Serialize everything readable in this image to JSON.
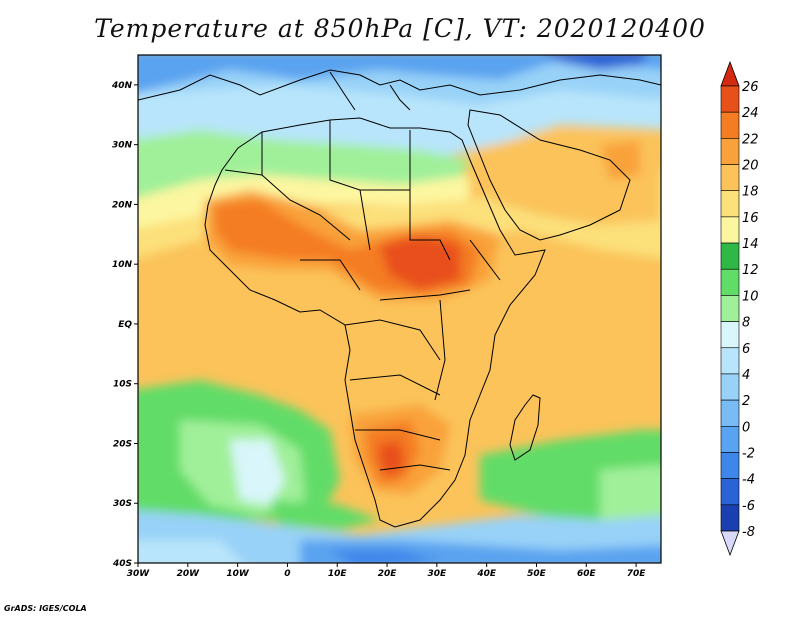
{
  "title": "Temperature at 850hPa [C], VT: 2020120400",
  "credit": "GrADS: IGES/COLA",
  "map": {
    "lon_range": [
      -30,
      75
    ],
    "lat_range": [
      -40,
      45
    ],
    "lat_ticks": [
      {
        "value": 40,
        "label": "40N"
      },
      {
        "value": 30,
        "label": "30N"
      },
      {
        "value": 20,
        "label": "20N"
      },
      {
        "value": 10,
        "label": "10N"
      },
      {
        "value": 0,
        "label": "EQ"
      },
      {
        "value": -10,
        "label": "10S"
      },
      {
        "value": -20,
        "label": "20S"
      },
      {
        "value": -30,
        "label": "30S"
      },
      {
        "value": -40,
        "label": "40S"
      }
    ],
    "lon_ticks": [
      {
        "value": -30,
        "label": "30W"
      },
      {
        "value": -20,
        "label": "20W"
      },
      {
        "value": -10,
        "label": "10W"
      },
      {
        "value": 0,
        "label": "0"
      },
      {
        "value": 10,
        "label": "10E"
      },
      {
        "value": 20,
        "label": "20E"
      },
      {
        "value": 30,
        "label": "30E"
      },
      {
        "value": 40,
        "label": "40E"
      },
      {
        "value": 50,
        "label": "50E"
      },
      {
        "value": 60,
        "label": "60E"
      },
      {
        "value": 70,
        "label": "70E"
      }
    ]
  },
  "colorbar": {
    "unit": "C",
    "levels": [
      {
        "value": -8,
        "label": "-8",
        "color": "#0a1a6e"
      },
      {
        "value": -6,
        "label": "-6",
        "color": "#1a3fb0"
      },
      {
        "value": -4,
        "label": "-4",
        "color": "#2a63d6"
      },
      {
        "value": -2,
        "label": "-2",
        "color": "#3f86ea"
      },
      {
        "value": 0,
        "label": "0",
        "color": "#5aa3f0"
      },
      {
        "value": 2,
        "label": "2",
        "color": "#79bcf5"
      },
      {
        "value": 4,
        "label": "4",
        "color": "#98d2f8"
      },
      {
        "value": 6,
        "label": "6",
        "color": "#b8e5fb"
      },
      {
        "value": 8,
        "label": "8",
        "color": "#d9f6fb"
      },
      {
        "value": 10,
        "label": "10",
        "color": "#a0f09a"
      },
      {
        "value": 12,
        "label": "12",
        "color": "#62dc68"
      },
      {
        "value": 14,
        "label": "14",
        "color": "#2fb845"
      },
      {
        "value": 16,
        "label": "16",
        "color": "#fdf6a0"
      },
      {
        "value": 18,
        "label": "18",
        "color": "#fce07a"
      },
      {
        "value": 20,
        "label": "20",
        "color": "#fbc35a"
      },
      {
        "value": 22,
        "label": "22",
        "color": "#f9a23b"
      },
      {
        "value": 24,
        "label": "24",
        "color": "#f47c23"
      },
      {
        "value": 26,
        "label": "26",
        "color": "#e8501a"
      }
    ],
    "under_color": "#d8d8fa",
    "over_color": "#d42a10"
  }
}
